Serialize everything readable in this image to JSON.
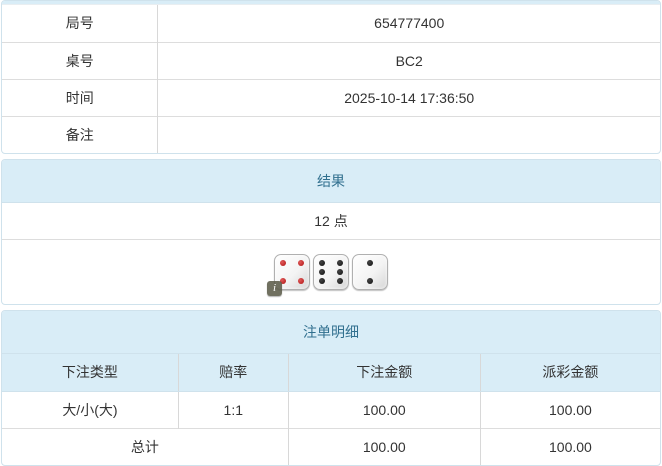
{
  "colors": {
    "heading_bg": "#d9edf7",
    "heading_text": "#31708f",
    "panel_border": "#cfe2ec",
    "row_border": "#dddddd",
    "body_text": "#333333",
    "odds_red": "#ee1111",
    "die_red_pip": "#b01212",
    "die_black_pip": "#111111"
  },
  "game_info": {
    "rows": [
      {
        "label": "局号",
        "value": "654777400"
      },
      {
        "label": "桌号",
        "value": "BC2"
      },
      {
        "label": "时间",
        "value": "2025-10-14 17:36:50"
      },
      {
        "label": "备注",
        "value": ""
      }
    ]
  },
  "result": {
    "heading": "结果",
    "points": "12 点",
    "dice": [
      {
        "value": 4,
        "color": "red"
      },
      {
        "value": 6,
        "color": "black"
      },
      {
        "value": 2,
        "color": "black"
      }
    ],
    "info_badge": "i"
  },
  "bet_details": {
    "heading": "注单明细",
    "columns": [
      "下注类型",
      "赔率",
      "下注金额",
      "派彩金额"
    ],
    "rows": [
      {
        "type": "大/小(大)",
        "odds": "1:1",
        "bet_amount": "100.00",
        "payout_amount": "100.00"
      }
    ],
    "total": {
      "label": "总计",
      "bet_amount": "100.00",
      "payout_amount": "100.00"
    }
  }
}
